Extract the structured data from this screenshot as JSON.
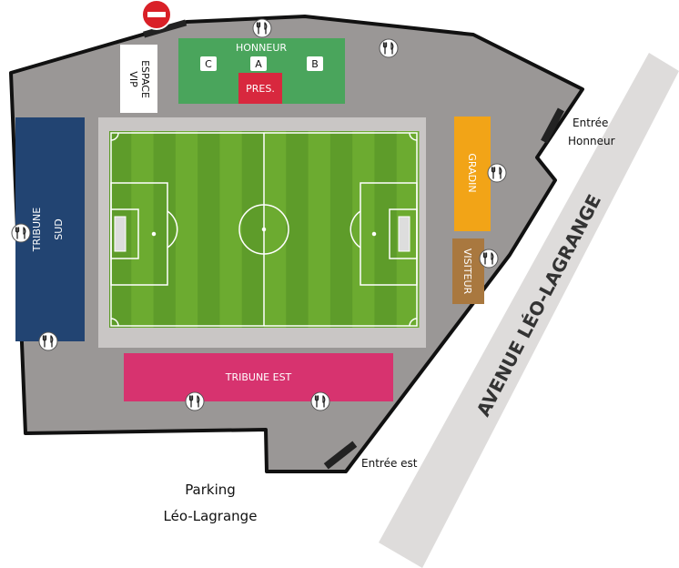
{
  "colors": {
    "ground": "#9a9796",
    "outline": "#111111",
    "pitch_frame": "#c9c6c5",
    "grass_dark": "#5e9c2a",
    "grass_light": "#6cab30",
    "tribune_sud": "#224472",
    "honneur": "#4aa55c",
    "pres": "#d8283e",
    "gradin": "#f2a417",
    "visiteur": "#a9783f",
    "tribune_est": "#d7336f",
    "avenue": "#dedcdb",
    "no_entry": "#d92027"
  },
  "stands": {
    "honneur": "HONNEUR",
    "pres": "PRES.",
    "box_c": "C",
    "box_a": "A",
    "box_b": "B",
    "espace_vip_line1": "ESPACE",
    "espace_vip_line2": "VIP",
    "tribune_sud_line1": "TRIBUNE",
    "tribune_sud_line2": "SUD",
    "gradin": "GRADIN",
    "visiteur": "VISITEUR",
    "tribune_est": "TRIBUNE EST"
  },
  "entrances": {
    "honneur_line1": "Entrée",
    "honneur_line2": "Honneur",
    "est": "Entrée est"
  },
  "parking": {
    "line1": "Parking",
    "line2": "Léo-Lagrange"
  },
  "street": {
    "avenue": "AVENUE LÉO-LAGRANGE"
  },
  "icons": {
    "food": "cutlery-icon",
    "no_entry": "no-entry-icon"
  }
}
